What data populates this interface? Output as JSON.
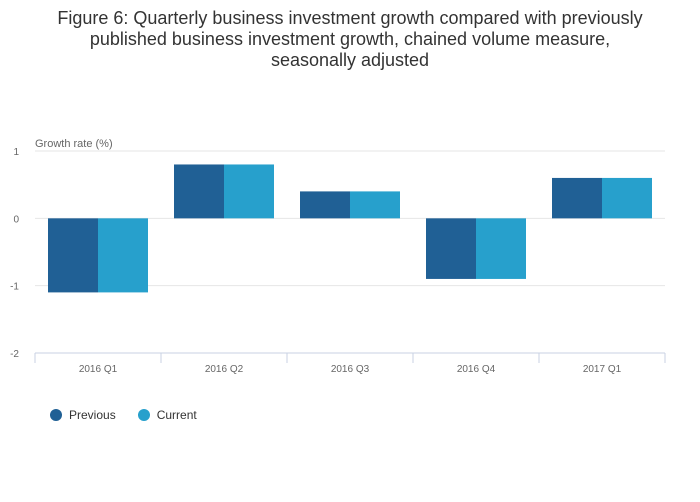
{
  "title_lines": [
    "Figure 6: Quarterly business investment growth compared with previously",
    "published business investment growth, chained volume measure,",
    "seasonally adjusted"
  ],
  "chart_data": {
    "type": "bar",
    "title": "Figure 6: Quarterly business investment growth compared with previously published business investment growth, chained volume measure, seasonally adjusted",
    "ylabel": "Growth rate (%)",
    "xlabel": "",
    "categories": [
      "2016 Q1",
      "2016 Q2",
      "2016 Q3",
      "2016 Q4",
      "2017 Q1"
    ],
    "series": [
      {
        "name": "Previous",
        "values": [
          -1.1,
          0.8,
          0.4,
          -0.9,
          0.6
        ],
        "color": "#206095"
      },
      {
        "name": "Current",
        "values": [
          -1.1,
          0.8,
          0.4,
          -0.9,
          0.6
        ],
        "color": "#27a0cc"
      }
    ],
    "ylim": [
      -2,
      1
    ],
    "yticks": [
      1,
      0,
      -1,
      -2
    ],
    "grid": true,
    "legend_position": "bottom-left"
  },
  "legend": [
    {
      "label": "Previous",
      "color": "#206095"
    },
    {
      "label": "Current",
      "color": "#27a0cc"
    }
  ]
}
